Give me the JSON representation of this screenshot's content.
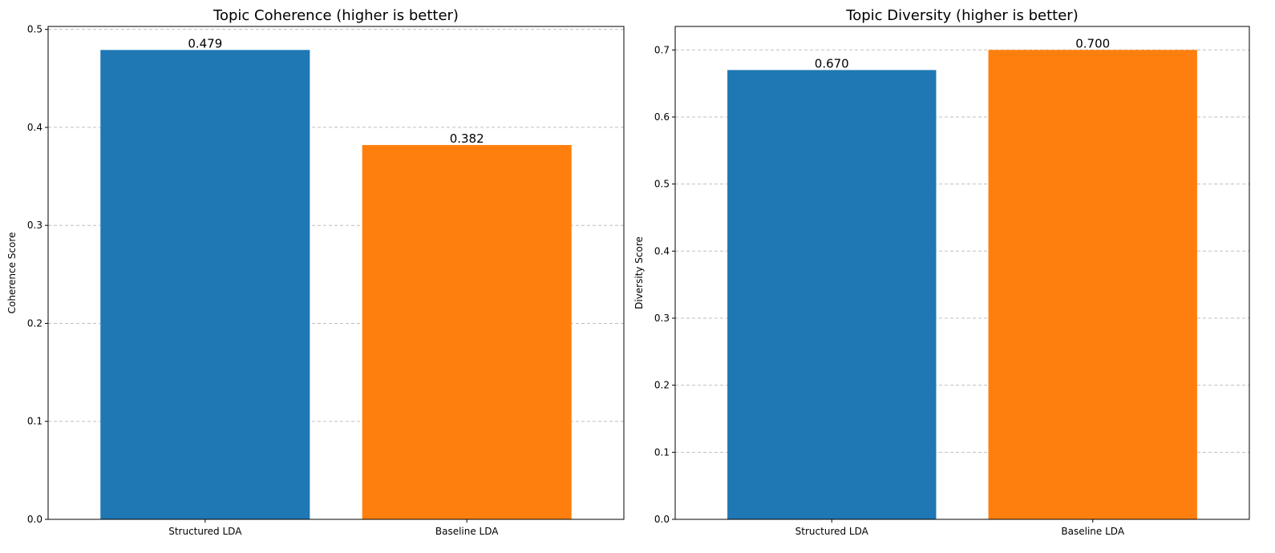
{
  "chart_data": [
    {
      "type": "bar",
      "title": "Topic Coherence (higher is better)",
      "xlabel": "",
      "ylabel": "Coherence Score",
      "categories": [
        "Structured LDA",
        "Baseline LDA"
      ],
      "values": [
        0.479,
        0.382
      ],
      "value_labels": [
        "0.479",
        "0.382"
      ],
      "colors": [
        "#1f77b4",
        "#ff7f0e"
      ],
      "ylim": [
        0,
        0.503
      ],
      "yticks": [
        0.0,
        0.1,
        0.2,
        0.3,
        0.4,
        0.5
      ],
      "ytick_labels": [
        "0.0",
        "0.1",
        "0.2",
        "0.3",
        "0.4",
        "0.5"
      ],
      "grid": "y-dashed",
      "legend": "none"
    },
    {
      "type": "bar",
      "title": "Topic Diversity (higher is better)",
      "xlabel": "",
      "ylabel": "Diversity Score",
      "categories": [
        "Structured LDA",
        "Baseline LDA"
      ],
      "values": [
        0.67,
        0.7
      ],
      "value_labels": [
        "0.670",
        "0.700"
      ],
      "colors": [
        "#1f77b4",
        "#ff7f0e"
      ],
      "ylim": [
        0,
        0.735
      ],
      "yticks": [
        0.0,
        0.1,
        0.2,
        0.3,
        0.4,
        0.5,
        0.6,
        0.7
      ],
      "ytick_labels": [
        "0.0",
        "0.1",
        "0.2",
        "0.3",
        "0.4",
        "0.5",
        "0.6",
        "0.7"
      ],
      "grid": "y-dashed",
      "legend": "none"
    }
  ]
}
